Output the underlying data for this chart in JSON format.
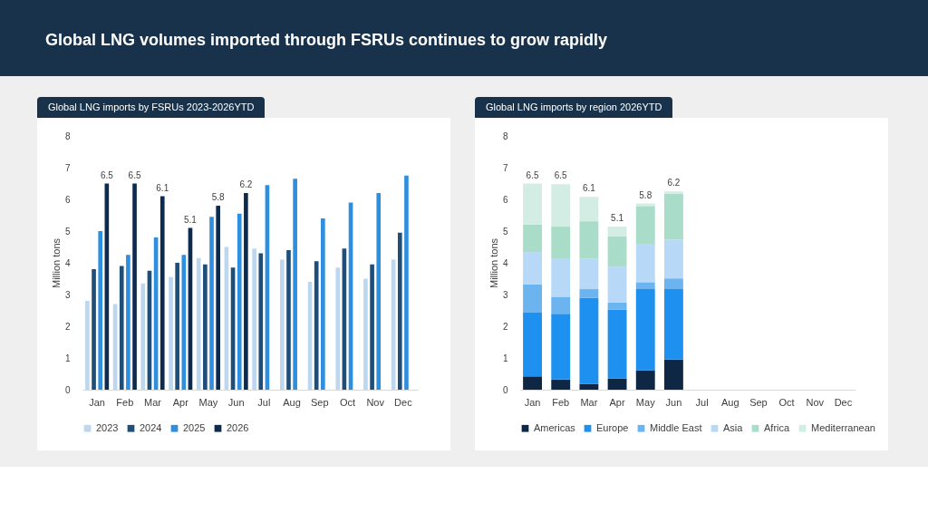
{
  "chart_data": [
    {
      "type": "bar",
      "title": "Global LNG volumes imported through FSRUs continues to grow rapidly",
      "subtitle": "Global LNG imports by FSRUs 2023-2026YTD",
      "ylabel": "Million tons",
      "categories": [
        "Jan",
        "Feb",
        "Mar",
        "Apr",
        "May",
        "Jun",
        "Jul",
        "Aug",
        "Sep",
        "Oct",
        "Nov",
        "Dec"
      ],
      "series": [
        {
          "name": "2023",
          "color": "#bdd7ee",
          "values": [
            2.8,
            2.7,
            3.35,
            3.55,
            4.15,
            4.5,
            4.45,
            4.1,
            3.4,
            3.85,
            3.5,
            4.1
          ]
        },
        {
          "name": "2024",
          "color": "#1f4e79",
          "values": [
            3.8,
            3.9,
            3.75,
            4.0,
            3.95,
            3.85,
            4.3,
            4.4,
            4.05,
            4.45,
            3.95,
            4.95
          ]
        },
        {
          "name": "2025",
          "color": "#2e8fdf",
          "values": [
            5.0,
            4.25,
            4.8,
            4.25,
            5.45,
            5.55,
            6.45,
            6.65,
            5.4,
            5.9,
            6.2,
            6.75
          ]
        },
        {
          "name": "2026",
          "color": "#0d2b4e",
          "values": [
            6.5,
            6.5,
            6.1,
            5.1,
            5.8,
            6.2,
            null,
            null,
            null,
            null,
            null,
            null
          ],
          "value_labels": [
            "6.5",
            "6.5",
            "6.1",
            "5.1",
            "5.8",
            "6.2",
            null,
            null,
            null,
            null,
            null,
            null
          ]
        }
      ],
      "ylim": [
        0,
        8
      ],
      "yticks": [
        0,
        1,
        2,
        3,
        4,
        5,
        6,
        7,
        8
      ],
      "grid": false,
      "legend": "bottom"
    },
    {
      "type": "bar",
      "title": "Global LNG imports by region 2026YTD",
      "ylabel": "Million tons",
      "stacked": true,
      "categories": [
        "Jan",
        "Feb",
        "Mar",
        "Apr",
        "May",
        "Jun",
        "Jul",
        "Aug",
        "Sep",
        "Oct",
        "Nov",
        "Dec"
      ],
      "series": [
        {
          "name": "Americas",
          "color": "#0d2744",
          "values": [
            0.42,
            0.32,
            0.18,
            0.35,
            0.61,
            0.95,
            null,
            null,
            null,
            null,
            null,
            null
          ]
        },
        {
          "name": "Europe",
          "color": "#1e90f0",
          "values": [
            2.01,
            2.07,
            2.72,
            2.18,
            2.56,
            2.22,
            null,
            null,
            null,
            null,
            null,
            null
          ]
        },
        {
          "name": "Middle East",
          "color": "#6cb4f0",
          "values": [
            0.89,
            0.54,
            0.27,
            0.22,
            0.22,
            0.34,
            null,
            null,
            null,
            null,
            null,
            null
          ]
        },
        {
          "name": "Asia",
          "color": "#b7d9f7",
          "values": [
            1.02,
            1.19,
            0.96,
            1.13,
            1.21,
            1.22,
            null,
            null,
            null,
            null,
            null,
            null
          ]
        },
        {
          "name": "Africa",
          "color": "#a9dcc9",
          "values": [
            0.87,
            1.02,
            1.18,
            0.96,
            1.19,
            1.45,
            null,
            null,
            null,
            null,
            null,
            null
          ]
        },
        {
          "name": "Mediterranean",
          "color": "#d4ede4",
          "values": [
            1.29,
            1.34,
            0.77,
            0.3,
            0.08,
            0.07,
            null,
            null,
            null,
            null,
            null,
            null
          ]
        }
      ],
      "totals": [
        "6.5",
        "6.5",
        "6.1",
        "5.1",
        "5.8",
        "6.2",
        null,
        null,
        null,
        null,
        null,
        null
      ],
      "ylim": [
        0,
        8
      ],
      "yticks": [
        0,
        1,
        2,
        3,
        4,
        5,
        6,
        7,
        8
      ],
      "grid": false,
      "legend": "bottom"
    }
  ]
}
